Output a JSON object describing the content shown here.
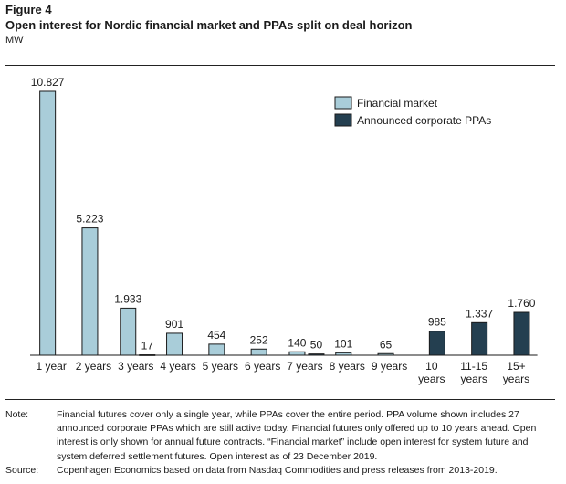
{
  "figure": {
    "label": "Figure 4",
    "title": "Open interest for Nordic financial market and PPAs split on deal horizon",
    "unit": "MW"
  },
  "colors": {
    "financial": "#a9cdd9",
    "ppa": "#243f50",
    "edge": "#1a1a1a"
  },
  "chart_data": {
    "type": "bar",
    "title": "",
    "xlabel": "",
    "ylabel": "MW",
    "ylim": [
      0,
      11000
    ],
    "grid": false,
    "legend": "top-right",
    "legend_entries": [
      "Financial market",
      "Announced corporate PPAs"
    ],
    "categories": [
      [
        "1 year"
      ],
      [
        "2 years"
      ],
      [
        "3 years"
      ],
      [
        "4 years"
      ],
      [
        "5 years"
      ],
      [
        "6 years"
      ],
      [
        "7 years"
      ],
      [
        "8 years"
      ],
      [
        "9 years"
      ],
      [
        "10",
        "years"
      ],
      [
        "11-15",
        "years"
      ],
      [
        "15+",
        "years"
      ]
    ],
    "series": [
      {
        "name": "Financial market",
        "values": [
          10827,
          5223,
          1933,
          901,
          454,
          252,
          140,
          101,
          65,
          null,
          null,
          null
        ],
        "labels": [
          "10.827",
          "5.223",
          "1.933",
          "901",
          "454",
          "252",
          "140",
          "101",
          "65",
          "",
          "",
          ""
        ]
      },
      {
        "name": "Announced corporate PPAs",
        "values": [
          null,
          null,
          17,
          null,
          null,
          null,
          50,
          null,
          null,
          985,
          1337,
          1760
        ],
        "labels": [
          "",
          "",
          "17",
          "",
          "",
          "",
          "50",
          "",
          "",
          "985",
          "1.337",
          "1.760"
        ]
      }
    ]
  },
  "notes": {
    "note_key": "Note:",
    "note_text": "Financial futures cover only a single year, while PPAs cover the entire period. PPA volume shown includes 27 announced corporate PPAs which are still active today. Financial futures only offered up to 10 years ahead. Open interest is only shown for annual future contracts. “Financial market” include open interest for system future and system deferred settlement futures. Open interest as of 23 December 2019.",
    "source_key": "Source:",
    "source_text": "Copenhagen Economics based on data from Nasdaq Commodities and press releases from 2013-2019."
  }
}
